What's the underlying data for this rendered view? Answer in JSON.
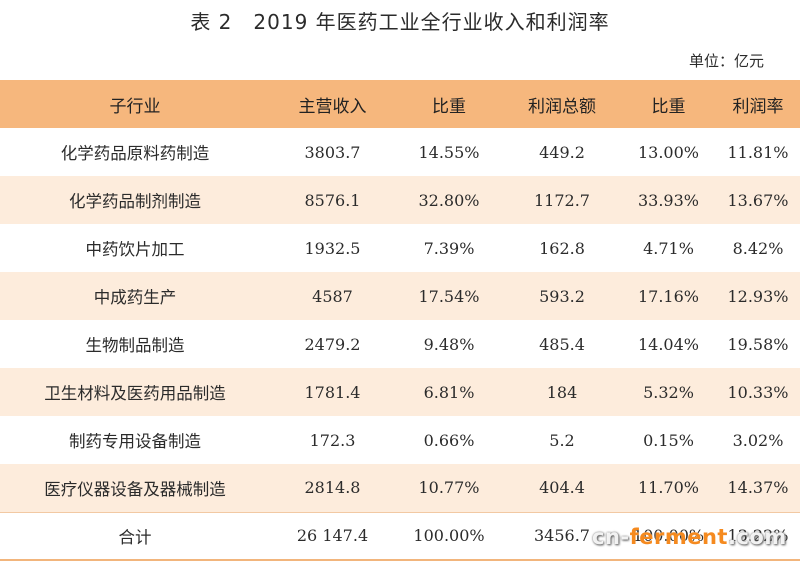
{
  "title": "表 2　2019 年医药工业全行业收入和利润率",
  "unit": "单位：亿元",
  "table": {
    "headers": [
      "子行业",
      "主营收入",
      "比重",
      "利润总额",
      "比重",
      "利润率"
    ],
    "rows": [
      [
        "化学药品原料药制造",
        "3803.7",
        "14.55%",
        "449.2",
        "13.00%",
        "11.81%"
      ],
      [
        "化学药品制剂制造",
        "8576.1",
        "32.80%",
        "1172.7",
        "33.93%",
        "13.67%"
      ],
      [
        "中药饮片加工",
        "1932.5",
        "7.39%",
        "162.8",
        "4.71%",
        "8.42%"
      ],
      [
        "中成药生产",
        "4587",
        "17.54%",
        "593.2",
        "17.16%",
        "12.93%"
      ],
      [
        "生物制品制造",
        "2479.2",
        "9.48%",
        "485.4",
        "14.04%",
        "19.58%"
      ],
      [
        "卫生材料及医药用品制造",
        "1781.4",
        "6.81%",
        "184",
        "5.32%",
        "10.33%"
      ],
      [
        "制药专用设备制造",
        "172.3",
        "0.66%",
        "5.2",
        "0.15%",
        "3.02%"
      ],
      [
        "医疗仪器设备及器械制造",
        "2814.8",
        "10.77%",
        "404.4",
        "11.70%",
        "14.37%"
      ]
    ],
    "total": [
      "合计",
      "26 147.4",
      "100.00%",
      "3456.7",
      "100.00%",
      "13.22%"
    ]
  },
  "watermark": {
    "prefix": "cn-",
    "accent": "ferment",
    "suffix": ".com"
  }
}
